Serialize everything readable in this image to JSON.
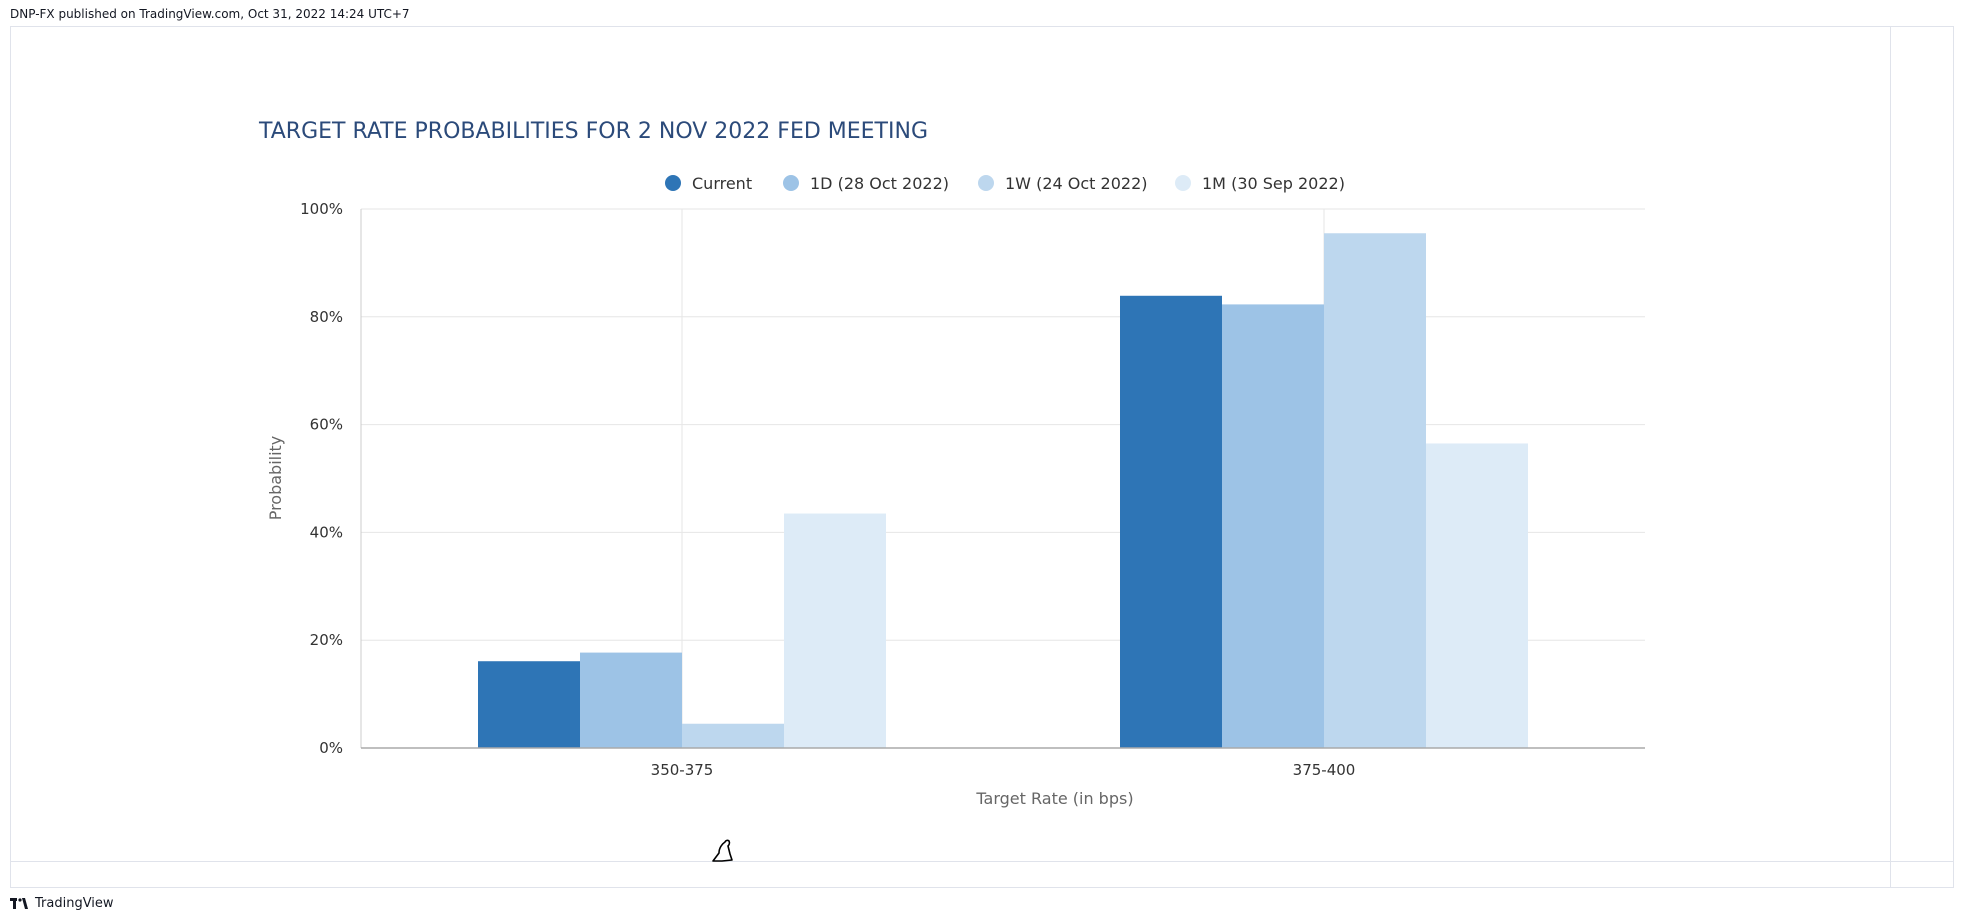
{
  "header": {
    "publish_line": "DNP-FX published on TradingView.com, Oct 31, 2022 14:24 UTC+7"
  },
  "footer": {
    "brand": "TradingView"
  },
  "colors": {
    "current": "#2e75b6",
    "d1": "#9dc3e6",
    "w1": "#bdd7ee",
    "m1": "#ddebf7",
    "title": "#2b4a7a",
    "grid": "#e6e6e6"
  },
  "chart_data": {
    "type": "bar",
    "title": "TARGET RATE PROBABILITIES FOR 2 NOV 2022 FED MEETING",
    "xlabel": "Target Rate (in bps)",
    "ylabel": "Probability",
    "categories": [
      "350-375",
      "375-400"
    ],
    "series": [
      {
        "name": "Current",
        "values": [
          16.1,
          83.9
        ]
      },
      {
        "name": "1D (28 Oct 2022)",
        "values": [
          17.7,
          82.3
        ]
      },
      {
        "name": "1W (24 Oct 2022)",
        "values": [
          4.5,
          95.5
        ]
      },
      {
        "name": "1M (30 Sep 2022)",
        "values": [
          43.5,
          56.5
        ]
      }
    ],
    "ylim": [
      0,
      100
    ],
    "yticks": [
      "0%",
      "20%",
      "40%",
      "60%",
      "80%",
      "100%"
    ],
    "legend_position": "top-center",
    "grid": true
  }
}
